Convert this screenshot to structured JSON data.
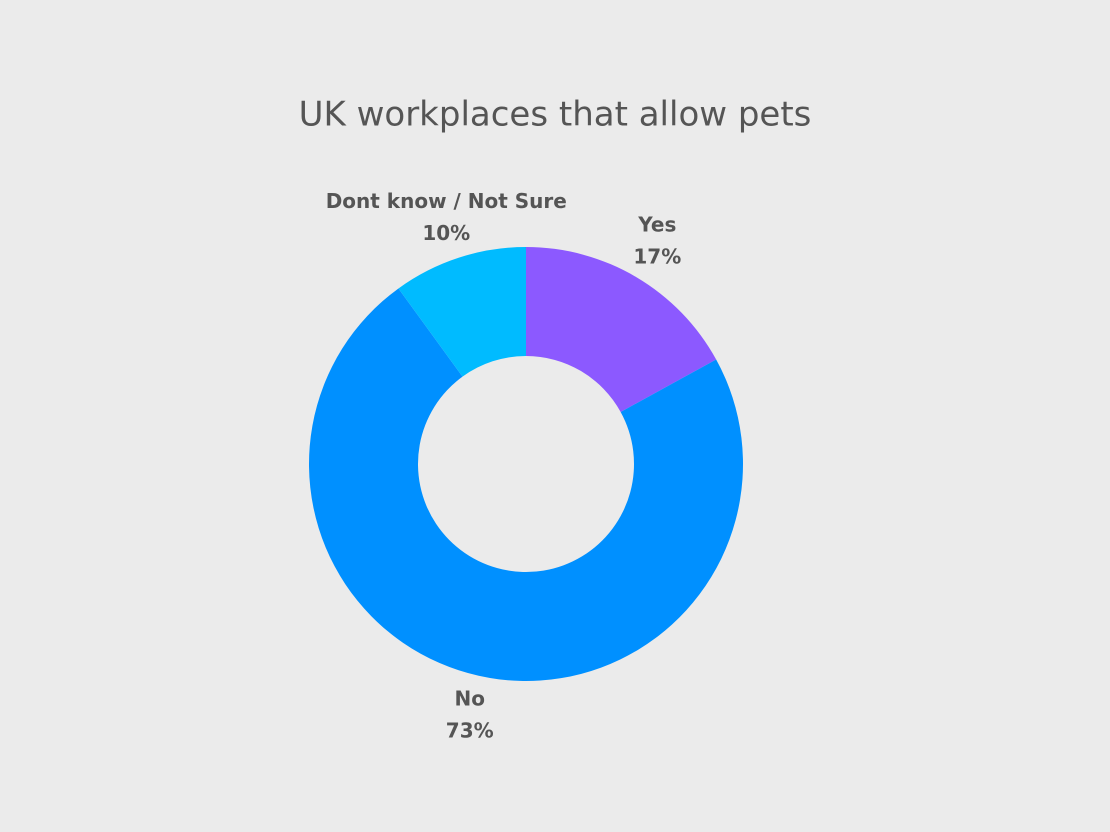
{
  "chart_data": {
    "type": "donut",
    "title": "UK workplaces that allow pets",
    "categories": [
      "Yes",
      "No",
      "Dont know / Not Sure"
    ],
    "values": [
      17,
      73,
      10
    ],
    "value_labels": [
      "17%",
      "73%",
      "10%"
    ],
    "colors": [
      "#8c59ff",
      "#0090ff",
      "#00bbff"
    ]
  }
}
